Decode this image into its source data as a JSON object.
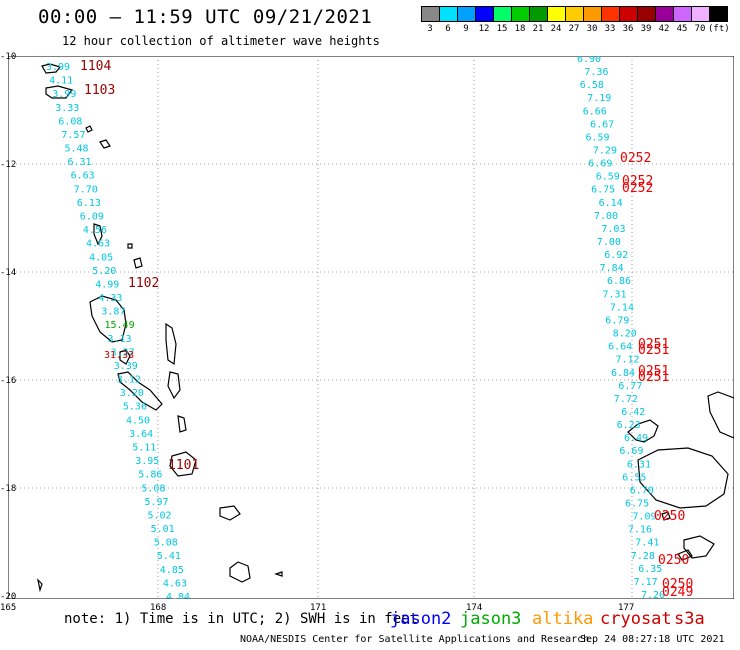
{
  "header": {
    "title": "00:00 – 11:59 UTC 09/21/2021",
    "subtitle": "12 hour collection of altimeter wave heights"
  },
  "color_scale": {
    "bins": [
      {
        "color": "#888888",
        "label": "3"
      },
      {
        "color": "#00e0ff",
        "label": "6"
      },
      {
        "color": "#00a0ff",
        "label": "9"
      },
      {
        "color": "#0000ff",
        "label": "12"
      },
      {
        "color": "#00ff66",
        "label": "15"
      },
      {
        "color": "#00cc00",
        "label": "18"
      },
      {
        "color": "#009900",
        "label": "21"
      },
      {
        "color": "#ffff00",
        "label": "24"
      },
      {
        "color": "#ffcc00",
        "label": "27"
      },
      {
        "color": "#ff9900",
        "label": "30"
      },
      {
        "color": "#ff3300",
        "label": "33"
      },
      {
        "color": "#cc0000",
        "label": "36"
      },
      {
        "color": "#990000",
        "label": "39"
      },
      {
        "color": "#990099",
        "label": "42"
      },
      {
        "color": "#cc66ff",
        "label": "45"
      },
      {
        "color": "#eeb0ff",
        "label": "70"
      },
      {
        "color": "#000000",
        "label": "(ft)"
      }
    ]
  },
  "axes": {
    "lat_labels": [
      "-10",
      "-12",
      "-14",
      "-16",
      "-18",
      "-20"
    ],
    "lon_labels": [
      "165",
      "168",
      "171",
      "174",
      "177"
    ]
  },
  "tracks": {
    "west": {
      "color": "#00c8e0",
      "values": [
        "3.99",
        "4.11",
        "3.99",
        "3.33",
        "6.08",
        "7.57",
        "5.48",
        "6.31",
        "6.63",
        "7.70",
        "6.13",
        "6.09",
        "4.56",
        "4.63",
        "4.05",
        "5.20",
        "4.99",
        "4.33",
        "3.87",
        "15.49",
        "3.13",
        "3.57",
        "3.39",
        "3.12",
        "3.20",
        "5.36",
        "4.50",
        "3.64",
        "5.11",
        "3.95",
        "5.86",
        "5.08",
        "5.97",
        "5.02",
        "5.01",
        "5.08",
        "5.41",
        "4.85",
        "4.63",
        "4.84"
      ]
    },
    "east": {
      "color": "#00c8e0",
      "values": [
        "6.90",
        "7.36",
        "6.58",
        "7.19",
        "6.66",
        "6.67",
        "6.59",
        "7.29",
        "6.69",
        "6.59",
        "6.75",
        "6.14",
        "7.00",
        "7.03",
        "7.00",
        "6.92",
        "7.84",
        "6.86",
        "7.31",
        "7.14",
        "6.79",
        "8.20",
        "6.64",
        "7.12",
        "6.84",
        "6.77",
        "7.72",
        "6.42",
        "6.23",
        "6.49",
        "6.69",
        "6.31",
        "6.55",
        "6.70",
        "6.75",
        "7.09",
        "7.16",
        "7.41",
        "7.28",
        "6.35",
        "7.17",
        "7.20"
      ]
    },
    "pass_labels": [
      "1104",
      "1103",
      "1102",
      "1101",
      "0252",
      "0252",
      "0252",
      "0251",
      "0251",
      "0251",
      "0251",
      "0250",
      "0250",
      "0250",
      "0249"
    ],
    "highlight_value": "31.33"
  },
  "footer": {
    "note": "note: 1) Time is in UTC; 2) SWH is in feet",
    "satellites": [
      {
        "name": "jason2",
        "color": "#0000ff"
      },
      {
        "name": "jason3",
        "color": "#00aa00"
      },
      {
        "name": "altika",
        "color": "#ff9900"
      },
      {
        "name": "cryosat",
        "color": "#cc0000"
      },
      {
        "name": "s3a",
        "color": "#cc0000"
      }
    ],
    "credit": "NOAA/NESDIS Center for Satellite Applications and Research",
    "timestamp": "Sep 24 08:27:18 UTC 2021"
  }
}
